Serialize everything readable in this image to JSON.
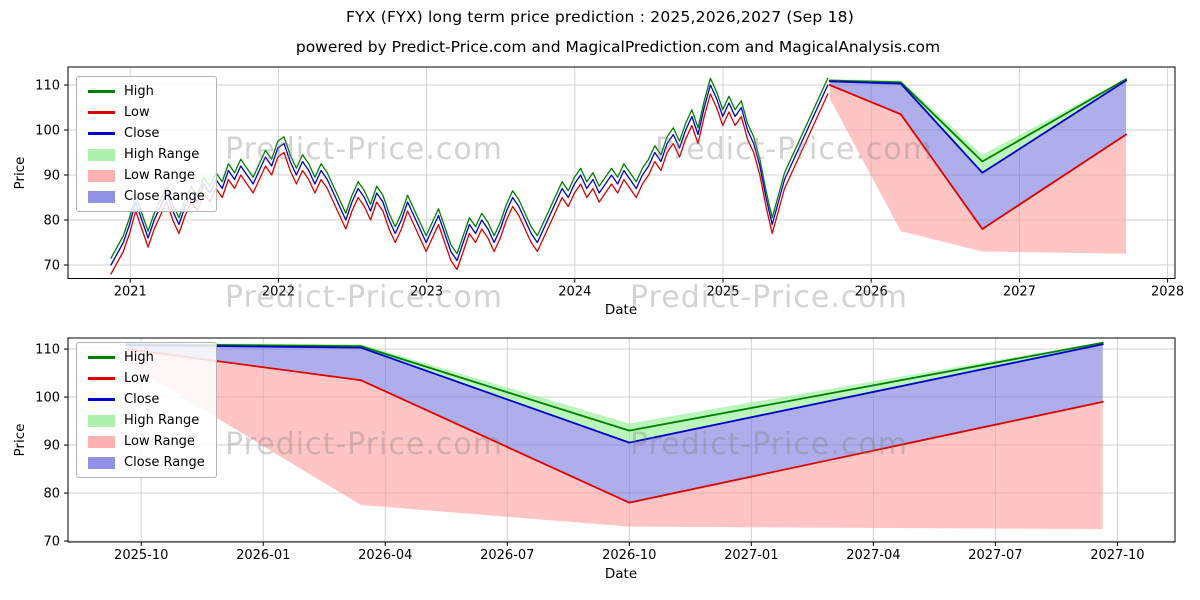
{
  "title": "FYX (FYX) long term price prediction : 2025,2026,2027 (Sep 18)",
  "subtitle": "powered by Predict-Price.com and MagicalPrediction.com and MagicalAnalysis.com",
  "watermark": {
    "text": "Predict-Price.com"
  },
  "colors": {
    "high": "#008000",
    "low": "#dd0000",
    "close": "#0000cc",
    "high_range": "rgba(144,238,144,0.6)",
    "low_range": "rgba(255,150,150,0.55)",
    "close_range": "rgba(108,108,220,0.55)",
    "grid": "#d3d3d3",
    "spine": "#000000"
  },
  "legend": [
    {
      "label": "High",
      "type": "line",
      "color": "#008000"
    },
    {
      "label": "Low",
      "type": "line",
      "color": "#dd0000"
    },
    {
      "label": "Close",
      "type": "line",
      "color": "#0000cc"
    },
    {
      "label": "High Range",
      "type": "patch",
      "color": "rgba(144,238,144,0.75)"
    },
    {
      "label": "Low Range",
      "type": "patch",
      "color": "rgba(255,150,150,0.75)"
    },
    {
      "label": "Close Range",
      "type": "patch",
      "color": "rgba(108,108,220,0.75)"
    }
  ],
  "chart_data": [
    {
      "type": "line",
      "name": "long-term-history-and-forecast",
      "xlabel": "Date",
      "ylabel": "Price",
      "xlim": [
        2020.58,
        2028.05
      ],
      "ylim": [
        67,
        114
      ],
      "xticks": [
        2021,
        2022,
        2023,
        2024,
        2025,
        2026,
        2027,
        2028
      ],
      "xtick_labels": [
        "2021",
        "2022",
        "2023",
        "2024",
        "2025",
        "2026",
        "2027",
        "2028"
      ],
      "yticks": [
        70,
        80,
        90,
        100,
        110
      ],
      "grid": true,
      "legend_position": "upper left",
      "historical": {
        "x_start": 2020.87,
        "x_step": 0.0417,
        "high_offset": 1.5,
        "low_offset": 2.0,
        "close": [
          70,
          72.5,
          75,
          79,
          84,
          80,
          76,
          80,
          83,
          86,
          82,
          79,
          83,
          86,
          84,
          88,
          86,
          89,
          87,
          91,
          89,
          92,
          90,
          88,
          91,
          94,
          92,
          96,
          97,
          93,
          90,
          93,
          91,
          88,
          91,
          89,
          86,
          83,
          80,
          84,
          87,
          85,
          82,
          86,
          84,
          80,
          77,
          80,
          84,
          81,
          78,
          75,
          78,
          81,
          77,
          73,
          71,
          75,
          79,
          77,
          80,
          78,
          75,
          78,
          82,
          85,
          83,
          80,
          77,
          75,
          78,
          81,
          84,
          87,
          85,
          88,
          90,
          87,
          89,
          86,
          88,
          90,
          88,
          91,
          89,
          87,
          90,
          92,
          95,
          93,
          97,
          99,
          96,
          100,
          103,
          99,
          105,
          110,
          107,
          103,
          106,
          103,
          105,
          100,
          97,
          92,
          85,
          79,
          84,
          89,
          92,
          95,
          98,
          101,
          104,
          107,
          110
        ]
      },
      "forecast": {
        "x": [
          2025.72,
          2026.2,
          2026.75,
          2027.72
        ],
        "high": [
          111.0,
          110.6,
          93.0,
          111.3
        ],
        "close": [
          110.8,
          110.3,
          90.5,
          111.0
        ],
        "low": [
          110.0,
          103.5,
          78.0,
          99.0
        ],
        "high_range_upper": [
          111.3,
          111.0,
          94.5,
          111.5
        ],
        "low_range_lower": [
          107.0,
          77.5,
          73.0,
          72.5
        ]
      }
    },
    {
      "type": "line",
      "name": "forecast-detail-2025-2027",
      "xlabel": "Date",
      "ylabel": "Price",
      "xlim": [
        2025.6,
        2027.868
      ],
      "ylim": [
        69.8,
        112.3
      ],
      "xticks": [
        2025.75,
        2026.0,
        2026.25,
        2026.5,
        2026.75,
        2027.0,
        2027.25,
        2027.5,
        2027.75
      ],
      "xtick_labels": [
        "2025-10",
        "2026-01",
        "2026-04",
        "2026-07",
        "2026-10",
        "2027-01",
        "2027-04",
        "2027-07",
        "2027-10"
      ],
      "yticks": [
        70,
        80,
        90,
        100,
        110
      ],
      "grid": true,
      "legend_position": "upper left",
      "forecast": {
        "x": [
          2025.72,
          2026.2,
          2026.75,
          2027.72
        ],
        "high": [
          111.0,
          110.6,
          93.0,
          111.3
        ],
        "close": [
          110.8,
          110.3,
          90.5,
          111.0
        ],
        "low": [
          110.0,
          103.5,
          78.0,
          99.0
        ],
        "high_range_upper": [
          111.3,
          111.0,
          94.5,
          111.5
        ],
        "low_range_lower": [
          107.0,
          77.5,
          73.0,
          72.5
        ]
      }
    }
  ]
}
